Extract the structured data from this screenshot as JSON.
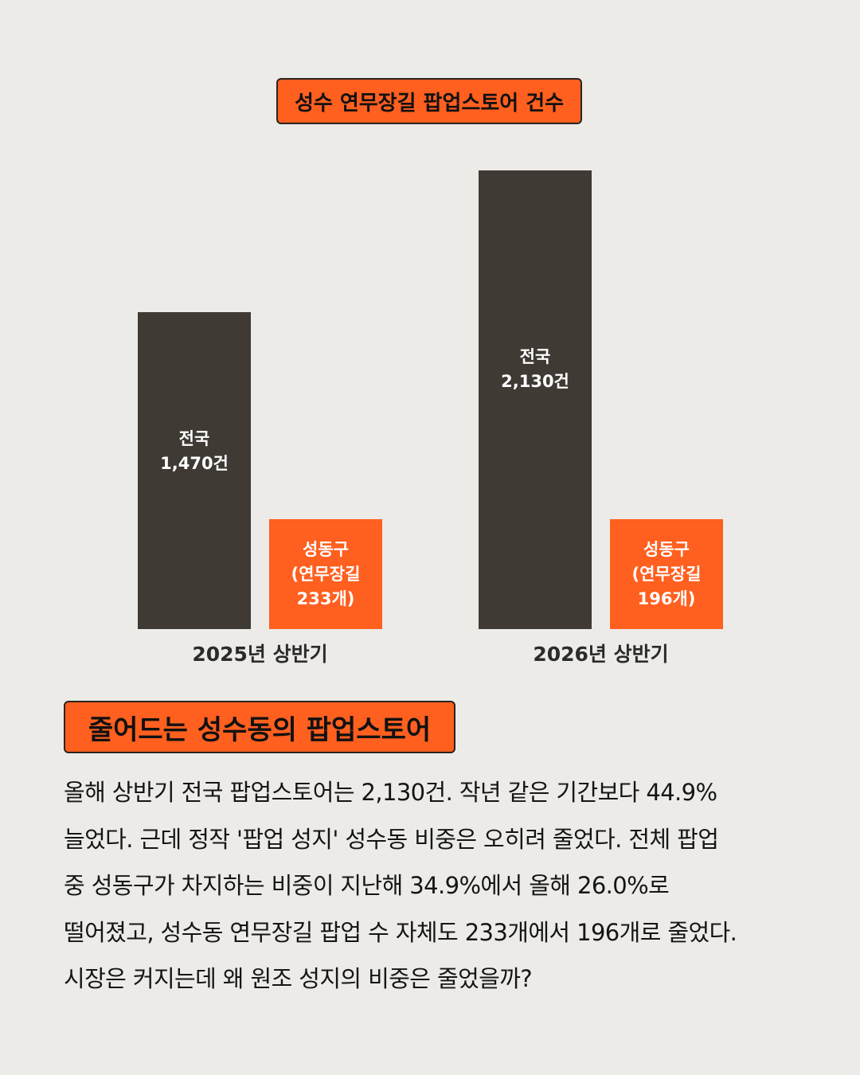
{
  "chart_title": "성수 연무장길 팝업스토어 건수",
  "section_title": "줄어드는 성수동의 팝업스토어",
  "chart_data": {
    "type": "bar",
    "title": "성수 연무장길 팝업스토어 건수",
    "categories": [
      "2025년 상반기",
      "2026년 상반기"
    ],
    "series": [
      {
        "values": [
          1470,
          2130
        ],
        "labels": [
          "전국\n1,470건",
          "전국\n2,130건"
        ],
        "color": "#3f3a34"
      },
      {
        "values": [
          233,
          196
        ],
        "labels": [
          "성동구\n(연무장길\n233개)",
          "성동구\n(연무장길\n196개)"
        ],
        "color": "#ff5f1f"
      }
    ],
    "xlabel": "",
    "ylabel": "",
    "grid": false
  },
  "body": {
    "lines": [
      "올해 상반기 전국 팝업스토어는 2,130건. 작년 같은 기간보다 44.9%",
      "늘었다. 근데 정작 '팝업 성지' 성수동 비중은 오히려 줄었다. 전체 팝업",
      "중 성동구가 차지하는 비중이 지난해 34.9%에서 올해 26.0%로",
      "떨어졌고, 성수동 연무장길 팝업 수 자체도 233개에서 196개로 줄었다.",
      "시장은 커지는데 왜 원조 성지의 비중은 줄었을까?"
    ]
  }
}
